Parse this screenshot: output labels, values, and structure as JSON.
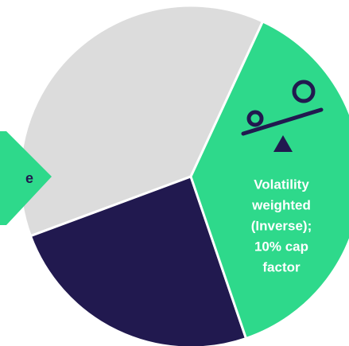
{
  "left_label": "e",
  "segment_label": [
    "Volatility",
    "weighted",
    "(Inverse);",
    "10% cap",
    "factor"
  ]
}
